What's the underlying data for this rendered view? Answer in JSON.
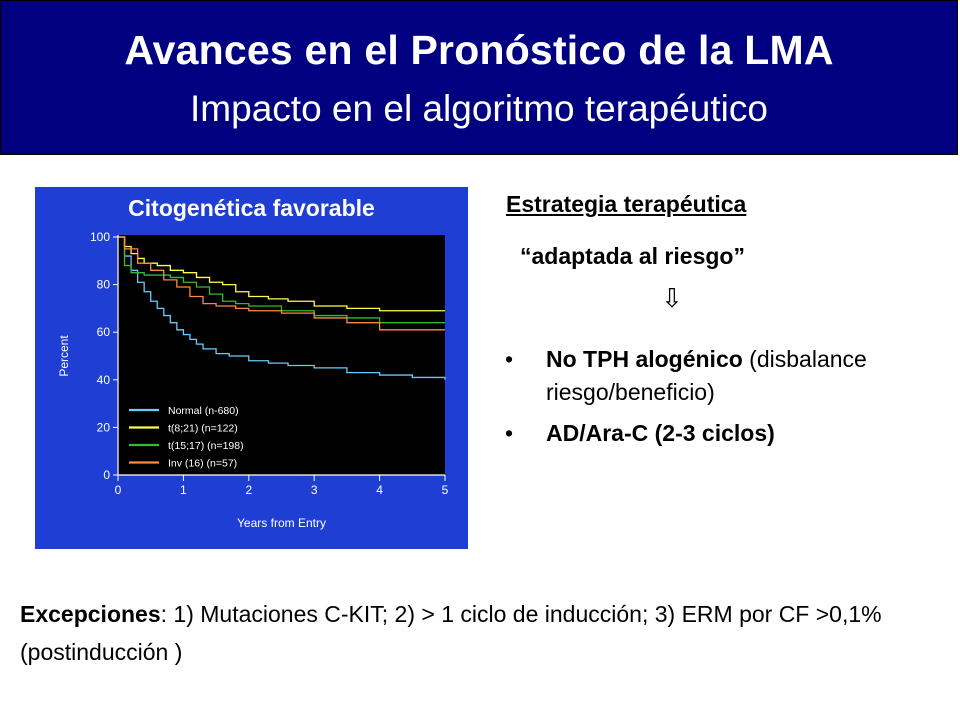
{
  "header": {
    "title": "Avances en el Pronóstico de la LMA",
    "subtitle": "Impacto en el algoritmo terapéutico",
    "background": "#000080"
  },
  "chart_data": {
    "type": "line",
    "title": "Citogenética favorable",
    "xlabel": "Years from Entry",
    "ylabel": "Percent",
    "xlim": [
      0,
      5
    ],
    "ylim": [
      0,
      100
    ],
    "x_ticks": [
      "0",
      "1",
      "2",
      "3",
      "4",
      "5"
    ],
    "y_ticks": [
      "0",
      "20",
      "40",
      "60",
      "80",
      "100"
    ],
    "grid": false,
    "legend_position": "bottom-left",
    "background": "#000000",
    "panel_color": "#1f3fd4",
    "series": [
      {
        "name": "Normal (n-680)",
        "color": "#66ccff",
        "x": [
          0,
          0.1,
          0.2,
          0.3,
          0.4,
          0.5,
          0.6,
          0.7,
          0.8,
          0.9,
          1.0,
          1.1,
          1.2,
          1.3,
          1.5,
          1.7,
          2.0,
          2.3,
          2.6,
          3.0,
          3.5,
          4.0,
          4.5,
          5.0
        ],
        "y": [
          100,
          92,
          86,
          81,
          77,
          73,
          70,
          67,
          64,
          61,
          59,
          57,
          55,
          53,
          51,
          50,
          48,
          47,
          46,
          45,
          43,
          42,
          41,
          40
        ]
      },
      {
        "name": "t(8;21) (n=122)",
        "color": "#ffff44",
        "x": [
          0,
          0.1,
          0.2,
          0.3,
          0.4,
          0.6,
          0.8,
          1.0,
          1.2,
          1.4,
          1.6,
          1.8,
          2.0,
          2.3,
          2.6,
          3.0,
          3.5,
          4.0,
          5.0
        ],
        "y": [
          100,
          96,
          93,
          91,
          89,
          88,
          86,
          85,
          83,
          81,
          80,
          77,
          75,
          74,
          73,
          71,
          70,
          69,
          69
        ]
      },
      {
        "name": "t(15;17) (n=198)",
        "color": "#33bb33",
        "x": [
          0,
          0.1,
          0.2,
          0.4,
          0.6,
          0.8,
          1.0,
          1.2,
          1.4,
          1.6,
          1.8,
          2.0,
          2.5,
          3.0,
          3.5,
          4.0,
          5.0
        ],
        "y": [
          100,
          88,
          85,
          84,
          84,
          83,
          81,
          79,
          76,
          73,
          72,
          71,
          69,
          67,
          66,
          64,
          64
        ]
      },
      {
        "name": "Inv (16) (n=57)",
        "color": "#ff8844",
        "x": [
          0,
          0.1,
          0.3,
          0.5,
          0.7,
          0.9,
          1.1,
          1.3,
          1.5,
          1.8,
          2.0,
          2.5,
          3.0,
          3.5,
          4.0,
          5.0
        ],
        "y": [
          100,
          95,
          89,
          86,
          82,
          79,
          75,
          72,
          71,
          70,
          69,
          68,
          66,
          64,
          61,
          61
        ]
      }
    ]
  },
  "strategy": {
    "heading": "Estrategia terapéutica",
    "subheading": "“adaptada al riesgo”",
    "arrow": "⇩",
    "bullets": [
      {
        "bold": "No TPH alogénico",
        "rest": " (disbalance riesgo/beneficio)"
      },
      {
        "bold": "AD/Ara-C (2-3 ciclos)",
        "rest": ""
      }
    ],
    "bullet_marker": "•"
  },
  "footer": {
    "bold": "Excepciones",
    "text": ": 1) Mutaciones C-KIT; 2) > 1 ciclo de inducción; 3) ERM  por CF >0,1% (postinducción )"
  }
}
